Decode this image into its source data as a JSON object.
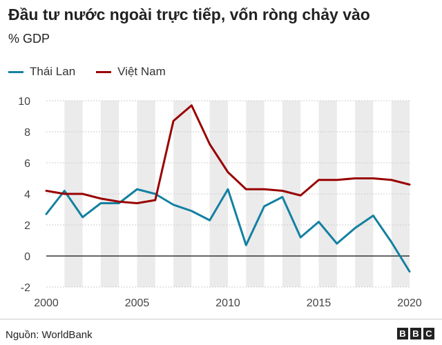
{
  "header": {
    "title": "Đầu tư nước ngoài trực tiếp, vốn ròng chảy vào",
    "subtitle": "% GDP"
  },
  "footer": {
    "source": "Nguồn: WorldBank",
    "logo_letters": [
      "B",
      "B",
      "C"
    ]
  },
  "chart_data": {
    "type": "line",
    "title": "Đầu tư nước ngoài trực tiếp, vốn ròng chảy vào",
    "subtitle": "% GDP",
    "xlabel": "",
    "ylabel": "",
    "xlim": [
      2000,
      2020
    ],
    "ylim": [
      -2,
      10
    ],
    "x_ticks": [
      2000,
      2005,
      2010,
      2015,
      2020
    ],
    "y_ticks": [
      -2,
      0,
      2,
      4,
      6,
      8,
      10
    ],
    "alternating_year_bands": true,
    "zero_line": true,
    "legend_position": "top-left",
    "x": [
      2000,
      2001,
      2002,
      2003,
      2004,
      2005,
      2006,
      2007,
      2008,
      2009,
      2010,
      2011,
      2012,
      2013,
      2014,
      2015,
      2016,
      2017,
      2018,
      2019,
      2020
    ],
    "series": [
      {
        "name": "Thái Lan",
        "color": "#1380a1",
        "values": [
          2.7,
          4.2,
          2.5,
          3.4,
          3.4,
          4.3,
          4.0,
          3.3,
          2.9,
          2.3,
          4.3,
          0.7,
          3.2,
          3.8,
          1.2,
          2.2,
          0.8,
          1.8,
          2.6,
          0.9,
          -1.0
        ]
      },
      {
        "name": "Việt Nam",
        "color": "#990000",
        "values": [
          4.2,
          4.0,
          4.0,
          3.7,
          3.5,
          3.4,
          3.6,
          8.7,
          9.7,
          7.2,
          5.4,
          4.3,
          4.3,
          4.2,
          3.9,
          4.9,
          4.9,
          5.0,
          5.0,
          4.9,
          4.6
        ]
      }
    ]
  }
}
